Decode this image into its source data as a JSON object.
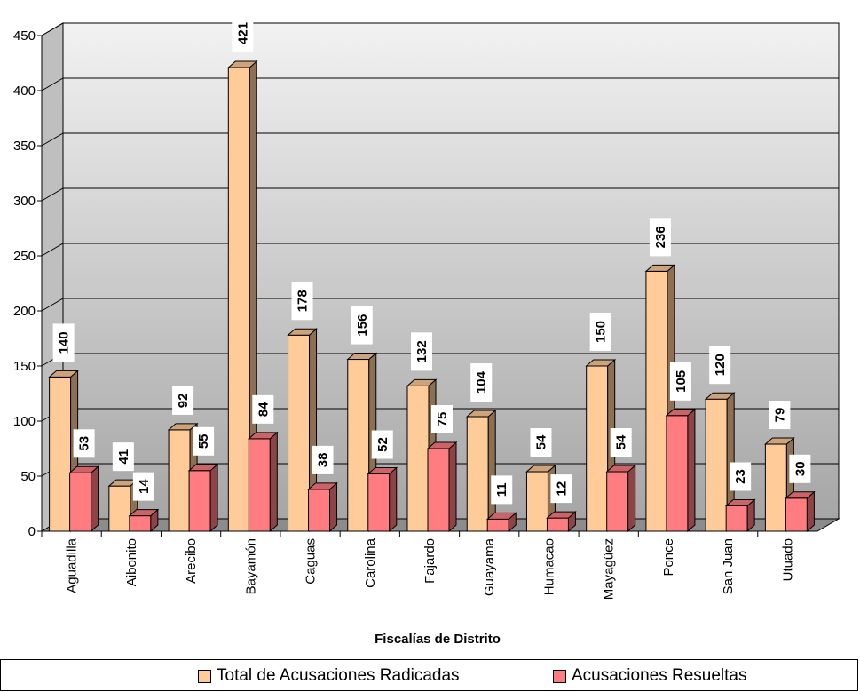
{
  "chart_data": {
    "type": "bar",
    "title": "",
    "xlabel": "Fiscalías de Distrito",
    "ylabel": "",
    "ylim": [
      0,
      450
    ],
    "yticks": [
      0,
      50,
      100,
      150,
      200,
      250,
      300,
      350,
      400,
      450
    ],
    "grid": true,
    "legend_position": "bottom",
    "categories": [
      "Aguadilla",
      "Aibonito",
      "Arecibo",
      "Bayamón",
      "Caguas",
      "Carolina",
      "Fajardo",
      "Guayama",
      "Humacao",
      "Mayagüez",
      "Ponce",
      "San Juan",
      "Utuado"
    ],
    "series": [
      {
        "name": "Total de Acusaciones Radicadas",
        "color": "#FFCC99",
        "values": [
          140,
          41,
          92,
          421,
          178,
          156,
          132,
          104,
          54,
          150,
          236,
          120,
          79
        ]
      },
      {
        "name": "Acusaciones Resueltas",
        "color": "#FF7C80",
        "values": [
          53,
          14,
          55,
          84,
          38,
          52,
          75,
          11,
          12,
          54,
          105,
          23,
          30
        ]
      }
    ]
  }
}
